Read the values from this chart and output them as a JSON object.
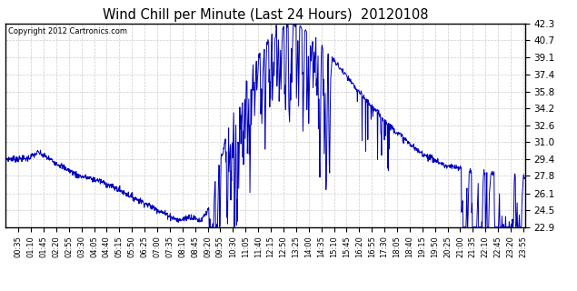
{
  "title": "Wind Chill per Minute (Last 24 Hours)  20120108",
  "copyright": "Copyright 2012 Cartronics.com",
  "line_color": "#0000bb",
  "background_color": "#ffffff",
  "grid_color": "#cccccc",
  "ylim": [
    22.9,
    42.3
  ],
  "yticks": [
    22.9,
    24.5,
    26.1,
    27.8,
    29.4,
    31.0,
    32.6,
    34.2,
    35.8,
    37.4,
    39.1,
    40.7,
    42.3
  ],
  "xtick_labels": [
    "00:35",
    "01:10",
    "01:45",
    "02:20",
    "02:55",
    "03:30",
    "04:05",
    "04:40",
    "05:15",
    "05:50",
    "06:25",
    "07:00",
    "07:35",
    "08:10",
    "08:45",
    "09:20",
    "09:55",
    "10:30",
    "11:05",
    "11:40",
    "12:15",
    "12:50",
    "13:25",
    "14:00",
    "14:35",
    "15:10",
    "15:45",
    "16:20",
    "16:55",
    "17:30",
    "18:05",
    "18:40",
    "19:15",
    "19:50",
    "20:25",
    "21:00",
    "21:35",
    "22:10",
    "22:45",
    "23:20",
    "23:55"
  ]
}
